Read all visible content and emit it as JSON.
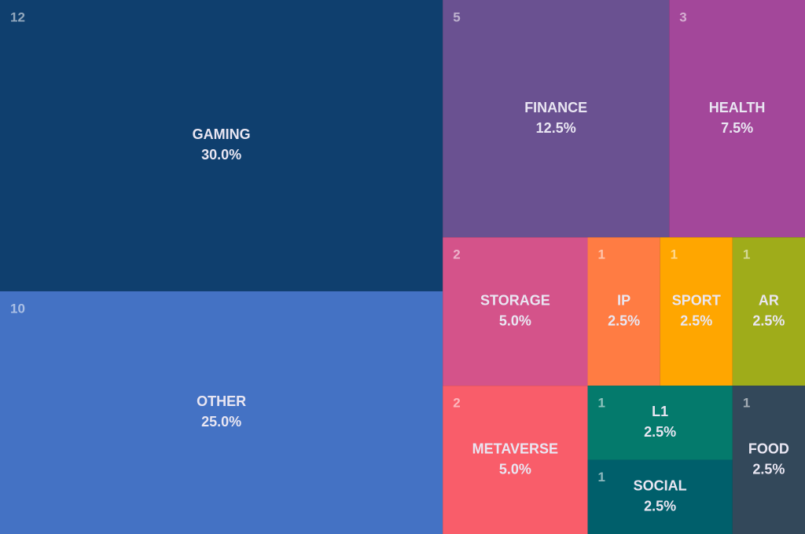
{
  "chart_data": {
    "type": "treemap",
    "categories": [
      "GAMING",
      "OTHER",
      "FINANCE",
      "HEALTH",
      "STORAGE",
      "METAVERSE",
      "IP",
      "SPORT",
      "AR",
      "L1",
      "SOCIAL",
      "FOOD"
    ],
    "values": [
      12,
      10,
      5,
      3,
      2,
      2,
      1,
      1,
      1,
      1,
      1,
      1
    ],
    "percent_labels": [
      "30.0%",
      "25.0%",
      "12.5%",
      "7.5%",
      "5.0%",
      "5.0%",
      "2.5%",
      "2.5%",
      "2.5%",
      "2.5%",
      "2.5%",
      "2.5%"
    ],
    "colors": [
      "#0f3f6e",
      "#4472c4",
      "#6a5191",
      "#a3479a",
      "#d4538a",
      "#f95d6a",
      "#ff7c43",
      "#ffa600",
      "#9fac1a",
      "#047a6c",
      "#005f6b",
      "#33485a"
    ]
  }
}
